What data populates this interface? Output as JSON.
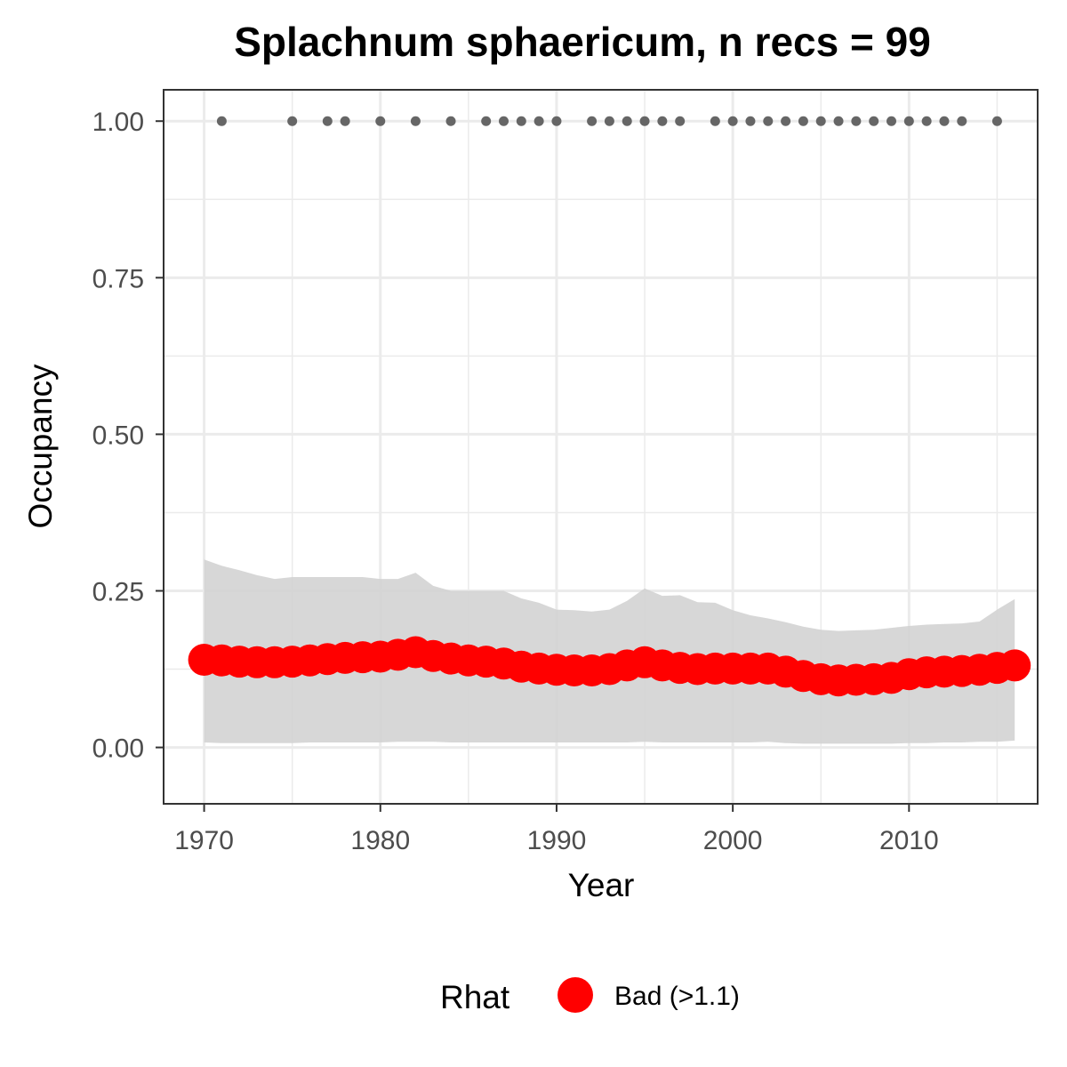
{
  "chart_data": {
    "type": "line",
    "title": "Splachnum sphaericum, n recs = 99",
    "xlabel": "Year",
    "ylabel": "Occupancy",
    "xlim": [
      1967.7,
      1917.3
    ],
    "ylim": [
      -0.09,
      1.05
    ],
    "x_ticks": [
      1970,
      1980,
      1990,
      2000,
      2010
    ],
    "x_tick_labels": [
      "1970",
      "1980",
      "1990",
      "2000",
      "2010"
    ],
    "y_ticks": [
      0.0,
      0.25,
      0.5,
      0.75,
      1.0
    ],
    "y_tick_labels": [
      "0.00",
      "0.25",
      "0.50",
      "0.75",
      "1.00"
    ],
    "grid": true,
    "legend": {
      "title": "Rhat",
      "position": "bottom",
      "entries": [
        {
          "label": "Bad (>1.1)",
          "color": "#ff0000"
        }
      ]
    },
    "colors": {
      "estimate": "#ff0000",
      "ribbon": "#d3d3d3",
      "record_points": "#666666",
      "grid": "#ebebeb",
      "panel_border": "#333333"
    },
    "series": [
      {
        "x": [
          1970,
          1971,
          1972,
          1973,
          1974,
          1975,
          1976,
          1977,
          1978,
          1979,
          1980,
          1981,
          1982,
          1983,
          1984,
          1985,
          1986,
          1987,
          1988,
          1989,
          1990,
          1991,
          1992,
          1993,
          1994,
          1995,
          1996,
          1997,
          1998,
          1999,
          2000,
          2001,
          2002,
          2003,
          2004,
          2005,
          2006,
          2007,
          2008,
          2009,
          2010,
          2011,
          2012,
          2013,
          2014,
          2015,
          2016
        ],
        "y": [
          0.14,
          0.139,
          0.137,
          0.136,
          0.136,
          0.137,
          0.139,
          0.141,
          0.143,
          0.144,
          0.145,
          0.148,
          0.152,
          0.146,
          0.142,
          0.139,
          0.137,
          0.134,
          0.129,
          0.126,
          0.124,
          0.123,
          0.123,
          0.125,
          0.131,
          0.136,
          0.131,
          0.127,
          0.125,
          0.126,
          0.126,
          0.126,
          0.126,
          0.121,
          0.114,
          0.109,
          0.107,
          0.108,
          0.109,
          0.111,
          0.117,
          0.12,
          0.121,
          0.122,
          0.124,
          0.127,
          0.131
        ],
        "lower": [
          0.008,
          0.007,
          0.007,
          0.007,
          0.007,
          0.007,
          0.008,
          0.008,
          0.008,
          0.008,
          0.008,
          0.009,
          0.009,
          0.009,
          0.008,
          0.008,
          0.008,
          0.008,
          0.008,
          0.008,
          0.008,
          0.008,
          0.008,
          0.008,
          0.008,
          0.009,
          0.008,
          0.008,
          0.008,
          0.008,
          0.008,
          0.008,
          0.009,
          0.007,
          0.006,
          0.006,
          0.006,
          0.006,
          0.006,
          0.006,
          0.007,
          0.007,
          0.008,
          0.008,
          0.009,
          0.009,
          0.011
        ],
        "upper": [
          0.3,
          0.29,
          0.283,
          0.275,
          0.269,
          0.272,
          0.272,
          0.272,
          0.272,
          0.272,
          0.269,
          0.269,
          0.279,
          0.258,
          0.25,
          0.25,
          0.25,
          0.25,
          0.238,
          0.231,
          0.22,
          0.219,
          0.217,
          0.22,
          0.234,
          0.254,
          0.242,
          0.243,
          0.232,
          0.231,
          0.219,
          0.211,
          0.206,
          0.2,
          0.193,
          0.188,
          0.186,
          0.187,
          0.188,
          0.191,
          0.194,
          0.196,
          0.197,
          0.198,
          0.201,
          0.22,
          0.237
        ]
      }
    ],
    "record_years": [
      1971,
      1975,
      1977,
      1978,
      1980,
      1982,
      1984,
      1986,
      1987,
      1988,
      1989,
      1990,
      1992,
      1993,
      1994,
      1995,
      1996,
      1997,
      1999,
      2000,
      2001,
      2002,
      2003,
      2004,
      2005,
      2006,
      2007,
      2008,
      2009,
      2010,
      2011,
      2012,
      2013,
      2015
    ],
    "record_value": 1.0
  }
}
